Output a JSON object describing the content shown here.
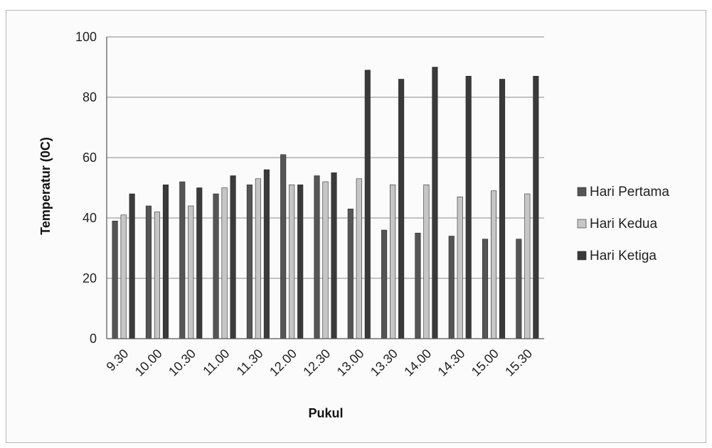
{
  "chart_data": {
    "type": "bar",
    "title": "",
    "xlabel": "Pukul",
    "ylabel": "Temperatur (0C)",
    "ylim": [
      0,
      100
    ],
    "yticks": [
      "0",
      "20",
      "40",
      "60",
      "80",
      "100"
    ],
    "grid": true,
    "legend_position": "right",
    "categories": [
      "9.30",
      "10.00",
      "10.30",
      "11.00",
      "11.30",
      "12.00",
      "12.30",
      "13.00",
      "13.30",
      "14.00",
      "14.30",
      "15.00",
      "15.30"
    ],
    "series": [
      {
        "name": "Hari Pertama",
        "color": "#555555",
        "values": [
          39,
          44,
          52,
          48,
          51,
          61,
          54,
          43,
          36,
          35,
          34,
          33,
          33
        ]
      },
      {
        "name": "Hari Kedua",
        "color": "#c6c6c6",
        "values": [
          41,
          42,
          44,
          50,
          53,
          51,
          52,
          53,
          51,
          51,
          47,
          49,
          48
        ]
      },
      {
        "name": "Hari Ketiga",
        "color": "#3a3a3a",
        "values": [
          48,
          51,
          50,
          54,
          56,
          51,
          55,
          89,
          86,
          90,
          87,
          86,
          87
        ]
      }
    ]
  }
}
